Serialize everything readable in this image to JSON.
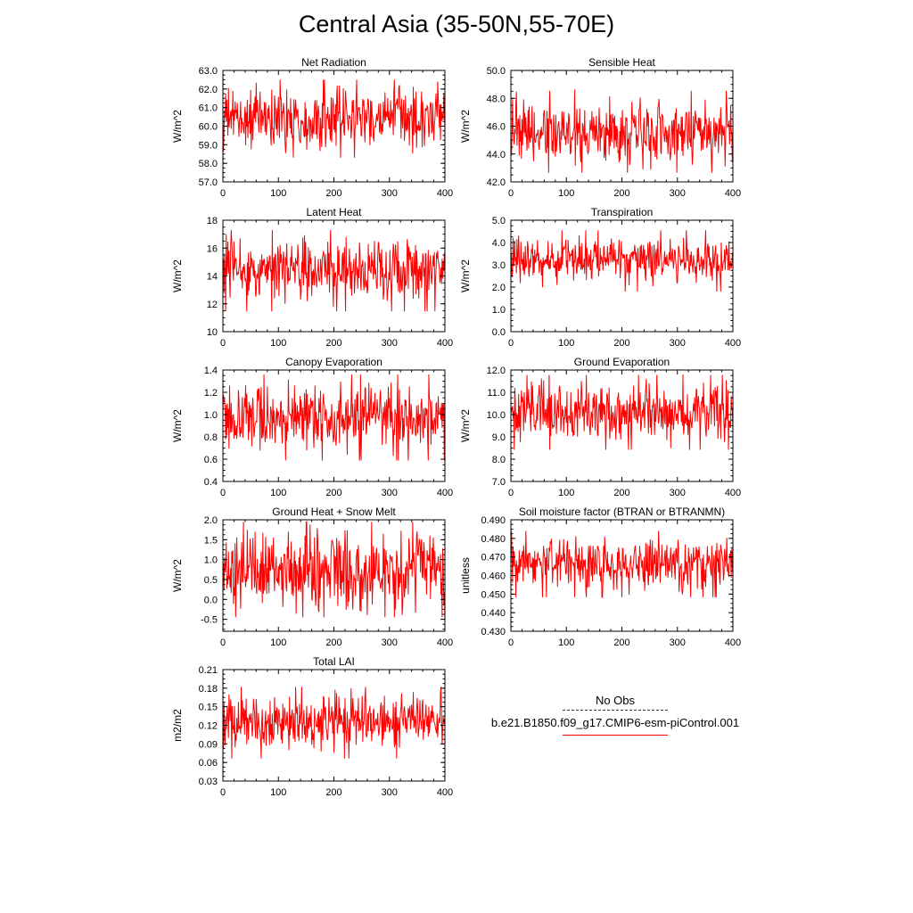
{
  "title": "Central Asia (35-50N,55-70E)",
  "legend": {
    "obs_label": "No Obs",
    "model_label": "b.e21.B1850.f09_g17.CMIP6-esm-piControl.001",
    "obs_color": "#333344",
    "model_color": "#ff0000"
  },
  "colors": {
    "series": "#ff0000",
    "axis": "#000000"
  },
  "chart_data": [
    {
      "type": "line",
      "title": "Net Radiation",
      "ylabel": "W/m^2",
      "xlim": [
        0,
        400
      ],
      "ylim": [
        57.0,
        63.0
      ],
      "xticks": [
        "0",
        "100",
        "200",
        "300",
        "400"
      ],
      "yticks": [
        "57.0",
        "58.0",
        "59.0",
        "60.0",
        "61.0",
        "62.0",
        "63.0"
      ],
      "series": [
        {
          "mean": 60.4,
          "sd": 0.75,
          "min": 57.5,
          "max": 63.0,
          "length": 400
        }
      ]
    },
    {
      "type": "line",
      "title": "Sensible Heat",
      "ylabel": "W/m^2",
      "xlim": [
        0,
        400
      ],
      "ylim": [
        42.0,
        50.0
      ],
      "xticks": [
        "0",
        "100",
        "200",
        "300",
        "400"
      ],
      "yticks": [
        "42.0",
        "44.0",
        "46.0",
        "48.0",
        "50.0"
      ],
      "series": [
        {
          "mean": 45.6,
          "sd": 1.05,
          "min": 42.3,
          "max": 49.4,
          "length": 400
        }
      ]
    },
    {
      "type": "line",
      "title": "Latent Heat",
      "ylabel": "W/m^2",
      "xlim": [
        0,
        400
      ],
      "ylim": [
        10,
        18
      ],
      "xticks": [
        "0",
        "100",
        "200",
        "300",
        "400"
      ],
      "yticks": [
        "10",
        "12",
        "14",
        "16",
        "18"
      ],
      "series": [
        {
          "mean": 14.4,
          "sd": 1.05,
          "min": 10.5,
          "max": 17.3,
          "length": 400
        }
      ]
    },
    {
      "type": "line",
      "title": "Transpiration",
      "ylabel": "W/m^2",
      "xlim": [
        0,
        400
      ],
      "ylim": [
        0.0,
        5.0
      ],
      "xticks": [
        "0",
        "100",
        "200",
        "300",
        "400"
      ],
      "yticks": [
        "0.0",
        "1.0",
        "2.0",
        "3.0",
        "4.0",
        "5.0"
      ],
      "series": [
        {
          "mean": 3.2,
          "sd": 0.5,
          "min": 0.8,
          "max": 4.55,
          "length": 400
        }
      ]
    },
    {
      "type": "line",
      "title": "Canopy Evaporation",
      "ylabel": "W/m^2",
      "xlim": [
        0,
        400
      ],
      "ylim": [
        0.4,
        1.4
      ],
      "xticks": [
        "0",
        "100",
        "200",
        "300",
        "400"
      ],
      "yticks": [
        "0.4",
        "0.6",
        "0.8",
        "1.0",
        "1.2",
        "1.4"
      ],
      "series": [
        {
          "mean": 0.98,
          "sd": 0.14,
          "min": 0.55,
          "max": 1.36,
          "length": 400
        }
      ]
    },
    {
      "type": "line",
      "title": "Ground Evaporation",
      "ylabel": "W/m^2",
      "xlim": [
        0,
        400
      ],
      "ylim": [
        7.0,
        12.0
      ],
      "xticks": [
        "0",
        "100",
        "200",
        "300",
        "400"
      ],
      "yticks": [
        "7.0",
        "8.0",
        "9.0",
        "10.0",
        "11.0",
        "12.0"
      ],
      "series": [
        {
          "mean": 10.1,
          "sd": 0.6,
          "min": 7.9,
          "max": 11.9,
          "length": 400
        }
      ]
    },
    {
      "type": "line",
      "title": "Ground Heat + Snow Melt",
      "ylabel": "W/m^2",
      "xlim": [
        0,
        400
      ],
      "ylim": [
        -0.8,
        2.0
      ],
      "xticks": [
        "0",
        "100",
        "200",
        "300",
        "400"
      ],
      "yticks": [
        "-0.5",
        "0.0",
        "0.5",
        "1.0",
        "1.5",
        "2.0"
      ],
      "series": [
        {
          "mean": 0.75,
          "sd": 0.5,
          "min": -0.45,
          "max": 1.95,
          "length": 400
        }
      ]
    },
    {
      "type": "line",
      "title": "Soil moisture factor (BTRAN or BTRANMN)",
      "ylabel": "unitless",
      "xlim": [
        0,
        400
      ],
      "ylim": [
        0.43,
        0.49
      ],
      "xticks": [
        "0",
        "100",
        "200",
        "300",
        "400"
      ],
      "yticks": [
        "0.430",
        "0.440",
        "0.450",
        "0.460",
        "0.470",
        "0.480",
        "0.490"
      ],
      "series": [
        {
          "mean": 0.4665,
          "sd": 0.0065,
          "min": 0.437,
          "max": 0.484,
          "length": 400
        }
      ]
    },
    {
      "type": "line",
      "title": "Total LAI",
      "ylabel": "m2/m2",
      "xlim": [
        0,
        400
      ],
      "ylim": [
        0.03,
        0.21
      ],
      "xticks": [
        "0",
        "100",
        "200",
        "300",
        "400"
      ],
      "yticks": [
        "0.03",
        "0.06",
        "0.09",
        "0.12",
        "0.15",
        "0.18",
        "0.21"
      ],
      "series": [
        {
          "mean": 0.128,
          "sd": 0.022,
          "min": 0.035,
          "max": 0.182,
          "length": 400
        }
      ]
    }
  ]
}
